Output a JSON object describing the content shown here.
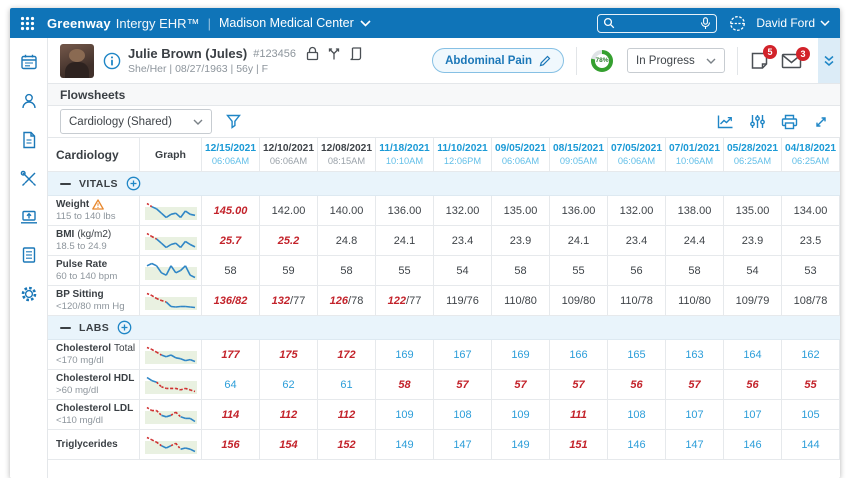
{
  "topbar": {
    "brand_bold": "Greenway",
    "brand_light": "Intergy EHR™",
    "org": "Madison Medical Center",
    "search_value": "",
    "user": "David Ford"
  },
  "patient": {
    "name": "Julie Brown (Jules)",
    "id": "#123456",
    "demographics": "She/Her  |  08/27/1963  |  56y  |  F",
    "condition_label": "Abdominal Pain",
    "progress_label": "78%",
    "status_value": "In Progress",
    "notes_badge": "5",
    "messages_badge": "3"
  },
  "page": {
    "title": "Flowsheets"
  },
  "toolbar": {
    "sheet_select": "Cardiology (Shared)"
  },
  "colors": {
    "topbar_blue": "#0f74b8",
    "accent_blue": "#1b9ad6",
    "value_blue": "#2d9ed9",
    "alert_red": "#c3232b",
    "badge_red": "#d2232a",
    "section_bg": "#e9f4fb",
    "spark_band_green": "#e9f1e1",
    "progress_green": "#35a02f",
    "warning_orange": "#e8882e"
  },
  "icons": {
    "app-grid": "⣿",
    "search": "⌕",
    "microphone": "🎙",
    "globe": "🌐",
    "chevron-down": "⌄",
    "calendar": "▦",
    "patient": "👤",
    "documents": "📄",
    "tools": "🛠",
    "inbox": "💻",
    "forms": "☰",
    "settings": "⚙",
    "info": "ⓘ",
    "lock": "🔒",
    "genogram": "⑂",
    "scroll": "📜",
    "pencil": "✎",
    "note": "📝",
    "envelope": "✉",
    "double-chevron": "⌄⌄",
    "line-chart": "📈",
    "sliders": "🎚",
    "printer": "🖨",
    "collapse": "⤡",
    "filter": "▽",
    "warning": "⚠",
    "minus": "−",
    "plus-circle": "⊕"
  },
  "flowsheet": {
    "title": "Cardiology",
    "graph_col": "Graph",
    "columns": [
      {
        "date": "12/15/2021",
        "time": "06:06AM",
        "tone": "accent"
      },
      {
        "date": "12/10/2021",
        "time": "06:06AM",
        "tone": "muted"
      },
      {
        "date": "12/08/2021",
        "time": "08:15AM",
        "tone": "muted"
      },
      {
        "date": "11/18/2021",
        "time": "10:10AM",
        "tone": "accent"
      },
      {
        "date": "11/10/2021",
        "time": "12:06PM",
        "tone": "accent"
      },
      {
        "date": "09/05/2021",
        "time": "06:06AM",
        "tone": "accent"
      },
      {
        "date": "08/15/2021",
        "time": "09:05AM",
        "tone": "accent"
      },
      {
        "date": "07/05/2021",
        "time": "06:06AM",
        "tone": "accent"
      },
      {
        "date": "07/01/2021",
        "time": "10:06AM",
        "tone": "accent"
      },
      {
        "date": "05/28/2021",
        "time": "06:25AM",
        "tone": "accent"
      },
      {
        "date": "04/18/2021",
        "time": "06:25AM",
        "tone": "accent"
      }
    ],
    "sections": [
      {
        "label": "VITALS",
        "rows": [
          {
            "label": "Weight",
            "label2": "",
            "sub": "115 to 140 lbs",
            "warn": true,
            "values": [
              "145.00",
              "142.00",
              "140.00",
              "136.00",
              "132.00",
              "135.00",
              "136.00",
              "132.00",
              "138.00",
              "135.00",
              "134.00"
            ],
            "flags": [
              "r",
              "d",
              "d",
              "d",
              "d",
              "d",
              "d",
              "d",
              "d",
              "d",
              "d"
            ]
          },
          {
            "label": "BMI",
            "label2": "(kg/m2)",
            "sub": "18.5 to 24.9",
            "warn": false,
            "values": [
              "25.7",
              "25.2",
              "24.8",
              "24.1",
              "23.4",
              "23.9",
              "24.1",
              "23.4",
              "24.4",
              "23.9",
              "23.5"
            ],
            "flags": [
              "r",
              "r",
              "d",
              "d",
              "d",
              "d",
              "d",
              "d",
              "d",
              "d",
              "d"
            ]
          },
          {
            "label": "Pulse Rate",
            "label2": "",
            "sub": "60 to 140 bpm",
            "warn": false,
            "values": [
              "58",
              "59",
              "58",
              "55",
              "54",
              "58",
              "55",
              "56",
              "58",
              "54",
              "53"
            ],
            "flags": [
              "d",
              "d",
              "d",
              "d",
              "d",
              "d",
              "d",
              "d",
              "d",
              "d",
              "d"
            ]
          },
          {
            "label": "BP Sitting",
            "label2": "",
            "sub": "<120/80 mm Hg",
            "warn": false,
            "values": [
              "136/82",
              "132/77",
              "126/78",
              "122/77",
              "119/76",
              "110/80",
              "109/80",
              "110/78",
              "110/80",
              "109/79",
              "108/78"
            ],
            "flags": [
              "r",
              "rd",
              "rd",
              "rd",
              "d",
              "d",
              "d",
              "d",
              "d",
              "d",
              "d"
            ]
          }
        ]
      },
      {
        "label": "LABS",
        "rows": [
          {
            "label": "Cholesterol",
            "label2": "Total",
            "sub": "<170 mg/dl",
            "warn": false,
            "values": [
              "177",
              "175",
              "172",
              "169",
              "167",
              "169",
              "166",
              "165",
              "163",
              "164",
              "162"
            ],
            "flags": [
              "r",
              "r",
              "r",
              "b",
              "b",
              "b",
              "b",
              "b",
              "b",
              "b",
              "b"
            ]
          },
          {
            "label": "Cholesterol HDL",
            "label2": "",
            "sub": ">60 mg/dl",
            "warn": false,
            "values": [
              "64",
              "62",
              "61",
              "58",
              "57",
              "57",
              "57",
              "56",
              "57",
              "56",
              "55"
            ],
            "flags": [
              "b",
              "b",
              "b",
              "r",
              "r",
              "r",
              "r",
              "r",
              "r",
              "r",
              "r"
            ]
          },
          {
            "label": "Cholesterol LDL",
            "label2": "",
            "sub": "<110 mg/dl",
            "warn": false,
            "values": [
              "114",
              "112",
              "112",
              "109",
              "108",
              "109",
              "111",
              "108",
              "107",
              "107",
              "105"
            ],
            "flags": [
              "r",
              "r",
              "r",
              "b",
              "b",
              "b",
              "r",
              "b",
              "b",
              "b",
              "b"
            ]
          },
          {
            "label": "Triglycerides",
            "label2": "",
            "sub": "",
            "warn": false,
            "values": [
              "156",
              "154",
              "152",
              "149",
              "147",
              "149",
              "151",
              "146",
              "147",
              "146",
              "144"
            ],
            "flags": [
              "r",
              "r",
              "r",
              "b",
              "b",
              "b",
              "r",
              "b",
              "b",
              "b",
              "b"
            ]
          }
        ]
      }
    ]
  }
}
